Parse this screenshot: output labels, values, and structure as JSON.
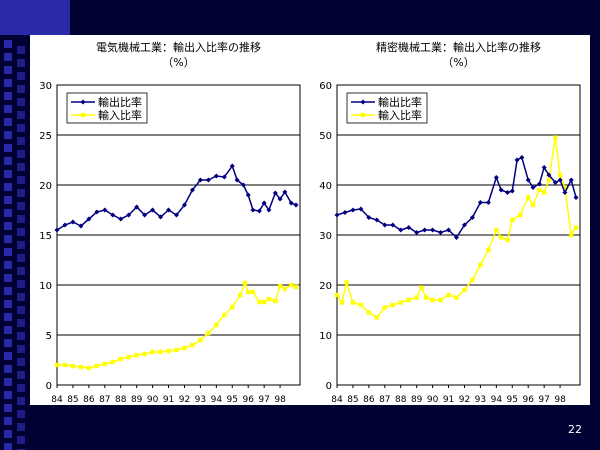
{
  "slide": {
    "page_number": "22",
    "colors": {
      "background": "#000033",
      "accent_squares": "#2a2aa8",
      "panel": "#ffffff"
    }
  },
  "chart_data": [
    {
      "type": "line",
      "title": "電気機械工業：輸出入比率の推移",
      "subtitle": "（%）",
      "x_tick_labels": [
        "84",
        "85",
        "86",
        "87",
        "88",
        "89",
        "90",
        "91",
        "92",
        "93",
        "94",
        "95",
        "96",
        "97",
        "98"
      ],
      "ylim": [
        0,
        30
      ],
      "y_ticks": [
        0,
        5,
        10,
        15,
        20,
        25,
        30
      ],
      "grid": true,
      "legend_position": "top-left",
      "x_range": [
        1984.0,
        1999.25
      ],
      "series": [
        {
          "name": "輸出比率",
          "color": "#000080",
          "marker": "diamond",
          "points": [
            [
              1984.0,
              15.5
            ],
            [
              1984.5,
              16.0
            ],
            [
              1985.0,
              16.3
            ],
            [
              1985.5,
              15.9
            ],
            [
              1986.0,
              16.6
            ],
            [
              1986.5,
              17.3
            ],
            [
              1987.0,
              17.5
            ],
            [
              1987.5,
              17.0
            ],
            [
              1988.0,
              16.6
            ],
            [
              1988.5,
              17.0
            ],
            [
              1989.0,
              17.8
            ],
            [
              1989.5,
              17.0
            ],
            [
              1990.0,
              17.5
            ],
            [
              1990.5,
              16.8
            ],
            [
              1991.0,
              17.5
            ],
            [
              1991.5,
              17.0
            ],
            [
              1992.0,
              18.0
            ],
            [
              1992.5,
              19.5
            ],
            [
              1993.0,
              20.5
            ],
            [
              1993.5,
              20.5
            ],
            [
              1994.0,
              20.9
            ],
            [
              1994.5,
              20.8
            ],
            [
              1995.0,
              21.9
            ],
            [
              1995.3,
              20.5
            ],
            [
              1995.7,
              20.0
            ],
            [
              1996.0,
              19.0
            ],
            [
              1996.3,
              17.5
            ],
            [
              1996.7,
              17.4
            ],
            [
              1997.0,
              18.2
            ],
            [
              1997.3,
              17.5
            ],
            [
              1997.7,
              19.2
            ],
            [
              1998.0,
              18.6
            ],
            [
              1998.3,
              19.3
            ],
            [
              1998.7,
              18.2
            ],
            [
              1999.0,
              18.0
            ]
          ]
        },
        {
          "name": "輸入比率",
          "color": "#ffff00",
          "marker": "square",
          "points": [
            [
              1984.0,
              2.0
            ],
            [
              1984.5,
              2.0
            ],
            [
              1985.0,
              1.9
            ],
            [
              1985.5,
              1.8
            ],
            [
              1986.0,
              1.7
            ],
            [
              1986.5,
              1.9
            ],
            [
              1987.0,
              2.1
            ],
            [
              1987.5,
              2.3
            ],
            [
              1988.0,
              2.6
            ],
            [
              1988.5,
              2.8
            ],
            [
              1989.0,
              3.0
            ],
            [
              1989.5,
              3.1
            ],
            [
              1990.0,
              3.3
            ],
            [
              1990.5,
              3.3
            ],
            [
              1991.0,
              3.4
            ],
            [
              1991.5,
              3.5
            ],
            [
              1992.0,
              3.7
            ],
            [
              1992.5,
              4.0
            ],
            [
              1993.0,
              4.5
            ],
            [
              1993.5,
              5.2
            ],
            [
              1994.0,
              6.0
            ],
            [
              1994.5,
              7.0
            ],
            [
              1995.0,
              7.8
            ],
            [
              1995.5,
              9.0
            ],
            [
              1995.8,
              10.2
            ],
            [
              1996.0,
              9.3
            ],
            [
              1996.3,
              9.3
            ],
            [
              1996.7,
              8.3
            ],
            [
              1997.0,
              8.3
            ],
            [
              1997.3,
              8.6
            ],
            [
              1997.7,
              8.4
            ],
            [
              1998.0,
              9.9
            ],
            [
              1998.3,
              9.6
            ],
            [
              1998.7,
              10.0
            ],
            [
              1999.0,
              9.8
            ]
          ]
        }
      ]
    },
    {
      "type": "line",
      "title": "精密機械工業：輸出入比率の推移",
      "subtitle": "（%）",
      "x_tick_labels": [
        "84",
        "85",
        "86",
        "87",
        "88",
        "89",
        "90",
        "91",
        "92",
        "93",
        "94",
        "95",
        "96",
        "97",
        "98"
      ],
      "ylim": [
        0,
        60
      ],
      "y_ticks": [
        0,
        10,
        20,
        30,
        40,
        50,
        60
      ],
      "grid": true,
      "legend_position": "top-left",
      "x_range": [
        1984.0,
        1999.25
      ],
      "series": [
        {
          "name": "輸出比率",
          "color": "#000080",
          "marker": "diamond",
          "points": [
            [
              1984.0,
              34.0
            ],
            [
              1984.5,
              34.5
            ],
            [
              1985.0,
              35.0
            ],
            [
              1985.5,
              35.2
            ],
            [
              1986.0,
              33.5
            ],
            [
              1986.5,
              33.0
            ],
            [
              1987.0,
              32.0
            ],
            [
              1987.5,
              32.0
            ],
            [
              1988.0,
              31.0
            ],
            [
              1988.5,
              31.5
            ],
            [
              1989.0,
              30.5
            ],
            [
              1989.5,
              31.0
            ],
            [
              1990.0,
              31.0
            ],
            [
              1990.5,
              30.5
            ],
            [
              1991.0,
              31.0
            ],
            [
              1991.5,
              29.5
            ],
            [
              1992.0,
              32.0
            ],
            [
              1992.5,
              33.5
            ],
            [
              1993.0,
              36.5
            ],
            [
              1993.5,
              36.5
            ],
            [
              1994.0,
              41.5
            ],
            [
              1994.3,
              39.0
            ],
            [
              1994.7,
              38.5
            ],
            [
              1995.0,
              38.8
            ],
            [
              1995.3,
              45.0
            ],
            [
              1995.6,
              45.5
            ],
            [
              1996.0,
              41.0
            ],
            [
              1996.3,
              39.5
            ],
            [
              1996.7,
              40.2
            ],
            [
              1997.0,
              43.5
            ],
            [
              1997.3,
              42.0
            ],
            [
              1997.7,
              40.5
            ],
            [
              1998.0,
              41.0
            ],
            [
              1998.3,
              38.5
            ],
            [
              1998.7,
              41.0
            ],
            [
              1999.0,
              37.5
            ]
          ]
        },
        {
          "name": "輸入比率",
          "color": "#ffff00",
          "marker": "square",
          "points": [
            [
              1984.0,
              18.0
            ],
            [
              1984.3,
              16.5
            ],
            [
              1984.6,
              20.5
            ],
            [
              1985.0,
              16.5
            ],
            [
              1985.5,
              16.0
            ],
            [
              1986.0,
              14.5
            ],
            [
              1986.5,
              13.5
            ],
            [
              1987.0,
              15.5
            ],
            [
              1987.5,
              16.0
            ],
            [
              1988.0,
              16.5
            ],
            [
              1988.5,
              17.0
            ],
            [
              1989.0,
              17.5
            ],
            [
              1989.3,
              19.5
            ],
            [
              1989.6,
              17.5
            ],
            [
              1990.0,
              17.0
            ],
            [
              1990.5,
              17.0
            ],
            [
              1991.0,
              18.0
            ],
            [
              1991.5,
              17.5
            ],
            [
              1992.0,
              19.0
            ],
            [
              1992.5,
              21.0
            ],
            [
              1993.0,
              24.0
            ],
            [
              1993.5,
              27.0
            ],
            [
              1994.0,
              31.0
            ],
            [
              1994.3,
              29.5
            ],
            [
              1994.7,
              29.0
            ],
            [
              1995.0,
              33.0
            ],
            [
              1995.5,
              34.0
            ],
            [
              1996.0,
              37.5
            ],
            [
              1996.3,
              36.0
            ],
            [
              1996.7,
              39.0
            ],
            [
              1997.0,
              38.5
            ],
            [
              1997.3,
              41.0
            ],
            [
              1997.7,
              49.5
            ],
            [
              1998.0,
              42.0
            ],
            [
              1998.3,
              39.5
            ],
            [
              1998.7,
              30.0
            ],
            [
              1999.0,
              31.5
            ]
          ]
        }
      ]
    }
  ]
}
